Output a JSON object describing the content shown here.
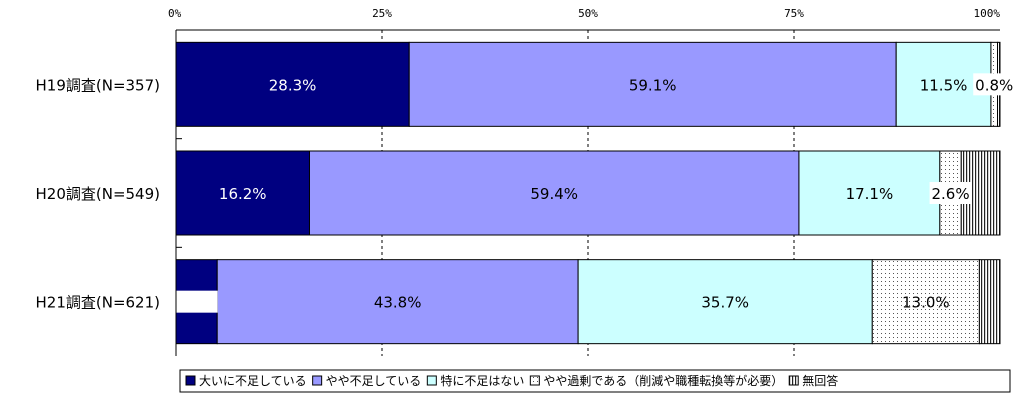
{
  "chart_data": {
    "type": "bar",
    "orientation": "horizontal",
    "stacked": "percent",
    "categories": [
      "H19調査(N=357)",
      "H20調査(N=549)",
      "H21調査(N=621)"
    ],
    "series": [
      {
        "name": "大いに不足している",
        "values": [
          28.3,
          16.2,
          5.0
        ],
        "labels": [
          "28.3%",
          "16.2%",
          "5.0%"
        ],
        "color": "#000080",
        "pattern": "solid"
      },
      {
        "name": "やや不足している",
        "values": [
          59.1,
          59.4,
          43.8
        ],
        "labels": [
          "59.1%",
          "59.4%",
          "43.8%"
        ],
        "color": "#9999ff",
        "pattern": "solid"
      },
      {
        "name": "特に不足はない",
        "values": [
          11.5,
          17.1,
          35.7
        ],
        "labels": [
          "11.5%",
          "17.1%",
          "35.7%"
        ],
        "color": "#ccffff",
        "pattern": "solid"
      },
      {
        "name": "やや過剰である（削減や職種転換等が必要）",
        "values": [
          0.8,
          2.6,
          13.0
        ],
        "labels": [
          "0.8%",
          "2.6%",
          "13.0%"
        ],
        "color": "#ffffff",
        "pattern": "dots"
      },
      {
        "name": "無回答",
        "values": [
          0.3,
          4.7,
          2.5
        ],
        "labels": [
          "",
          "",
          ""
        ],
        "color": "#ffffff",
        "pattern": "vlines"
      }
    ],
    "x_ticks": [
      "0%",
      "25%",
      "50%",
      "75%",
      "100%"
    ],
    "xlim": [
      0,
      100
    ],
    "grid": "vertical dashed",
    "legend_position": "bottom"
  }
}
